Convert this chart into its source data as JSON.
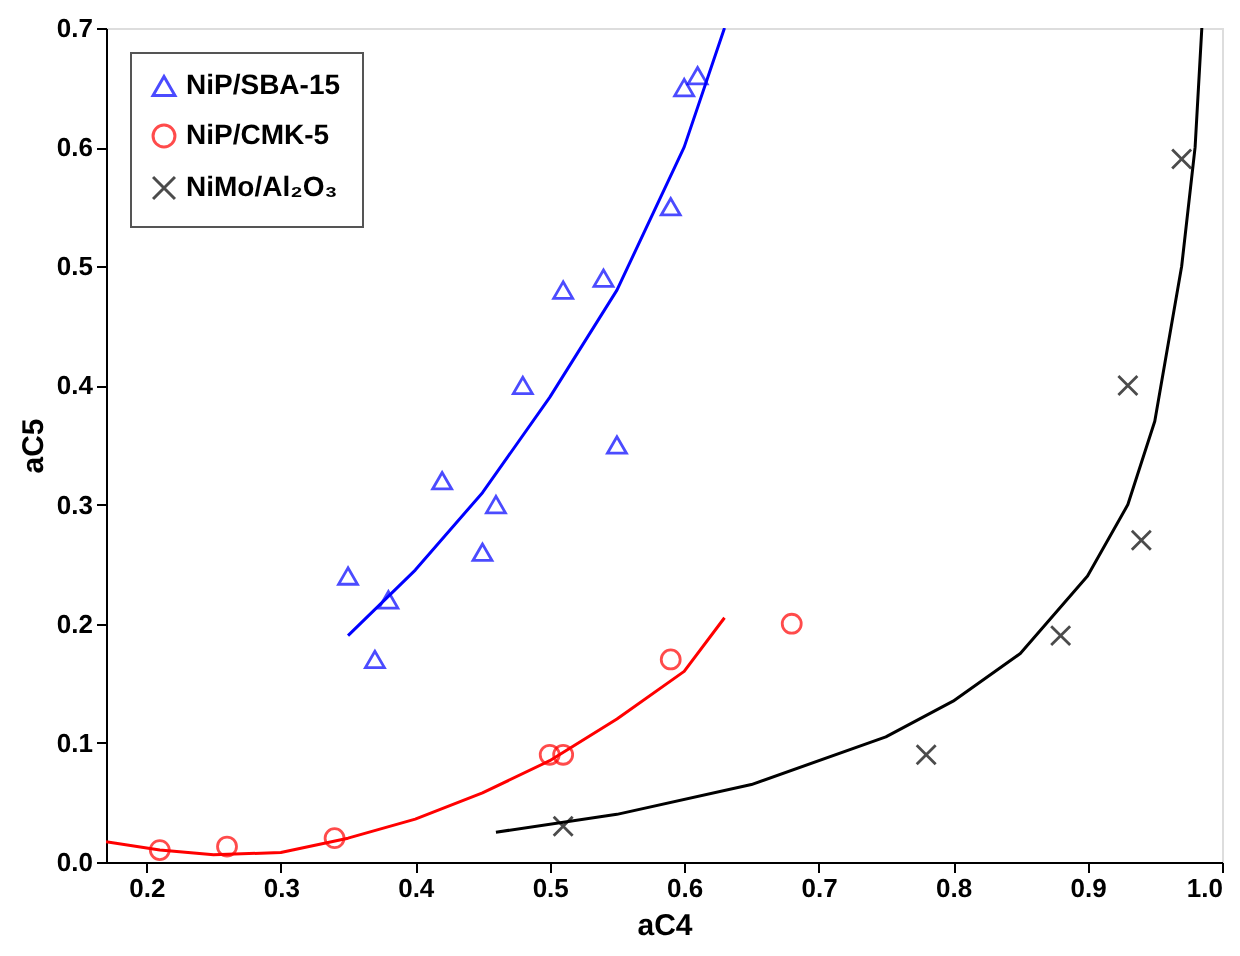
{
  "chart_data": {
    "type": "scatter",
    "xlabel": "aC4",
    "ylabel": "aC5",
    "xlim": [
      0.17,
      1.0
    ],
    "xticks": [
      0.2,
      0.3,
      0.4,
      0.5,
      0.6,
      0.7,
      0.8,
      0.9,
      {
        "value": 1.0,
        "label": "1.0"
      }
    ],
    "ylim": [
      0,
      0.7
    ],
    "yticks": [
      {
        "value": 0,
        "label": "0.0"
      },
      0.1,
      0.2,
      0.3,
      0.4,
      0.5,
      0.6,
      0.7
    ],
    "grid": false,
    "legend": "top left",
    "series": [
      {
        "name": "NiP/SBA-15",
        "color": "#0000ff",
        "marker": "triangle",
        "x": [
          0.35,
          0.37,
          0.38,
          0.42,
          0.45,
          0.46,
          0.48,
          0.51,
          0.54,
          0.55,
          0.59,
          0.6,
          0.61
        ],
        "values": [
          0.24,
          0.17,
          0.22,
          0.32,
          0.26,
          0.3,
          0.4,
          0.48,
          0.49,
          0.35,
          0.55,
          0.65,
          0.66
        ]
      },
      {
        "name": "NiP/CMK-5",
        "color": "#ff0000",
        "marker": "circle",
        "x": [
          0.21,
          0.26,
          0.34,
          0.5,
          0.51,
          0.59,
          0.68
        ],
        "values": [
          0.01,
          0.013,
          0.02,
          0.09,
          0.09,
          0.17,
          0.2
        ]
      },
      {
        "name": "NiMo/Al₂O₃",
        "color": "#000000",
        "marker": "cross",
        "x": [
          0.51,
          0.78,
          0.88,
          0.93,
          0.94,
          0.97
        ],
        "values": [
          0.03,
          0.09,
          0.19,
          0.4,
          0.27,
          0.59
        ]
      },
      {
        "type": "line",
        "color": "#0000ff",
        "marker": "none",
        "x": [
          0.35,
          0.4,
          0.45,
          0.5,
          0.55,
          0.6,
          0.63
        ],
        "values": [
          0.19,
          0.245,
          0.31,
          0.39,
          0.48,
          0.6,
          0.7
        ]
      },
      {
        "type": "line",
        "color": "#ff0000",
        "marker": "none",
        "x": [
          0.17,
          0.21,
          0.25,
          0.3,
          0.35,
          0.4,
          0.45,
          0.5,
          0.55,
          0.6,
          0.63
        ],
        "values": [
          0.017,
          0.01,
          0.006,
          0.008,
          0.02,
          0.036,
          0.058,
          0.085,
          0.12,
          0.16,
          0.205
        ]
      },
      {
        "type": "line",
        "color": "#000000",
        "marker": "none",
        "x": [
          0.46,
          0.55,
          0.65,
          0.75,
          0.8,
          0.85,
          0.9,
          0.93,
          0.95,
          0.97,
          0.98,
          0.985
        ],
        "values": [
          0.025,
          0.04,
          0.065,
          0.105,
          0.135,
          0.175,
          0.24,
          0.3,
          0.37,
          0.5,
          0.6,
          0.7
        ]
      }
    ]
  }
}
